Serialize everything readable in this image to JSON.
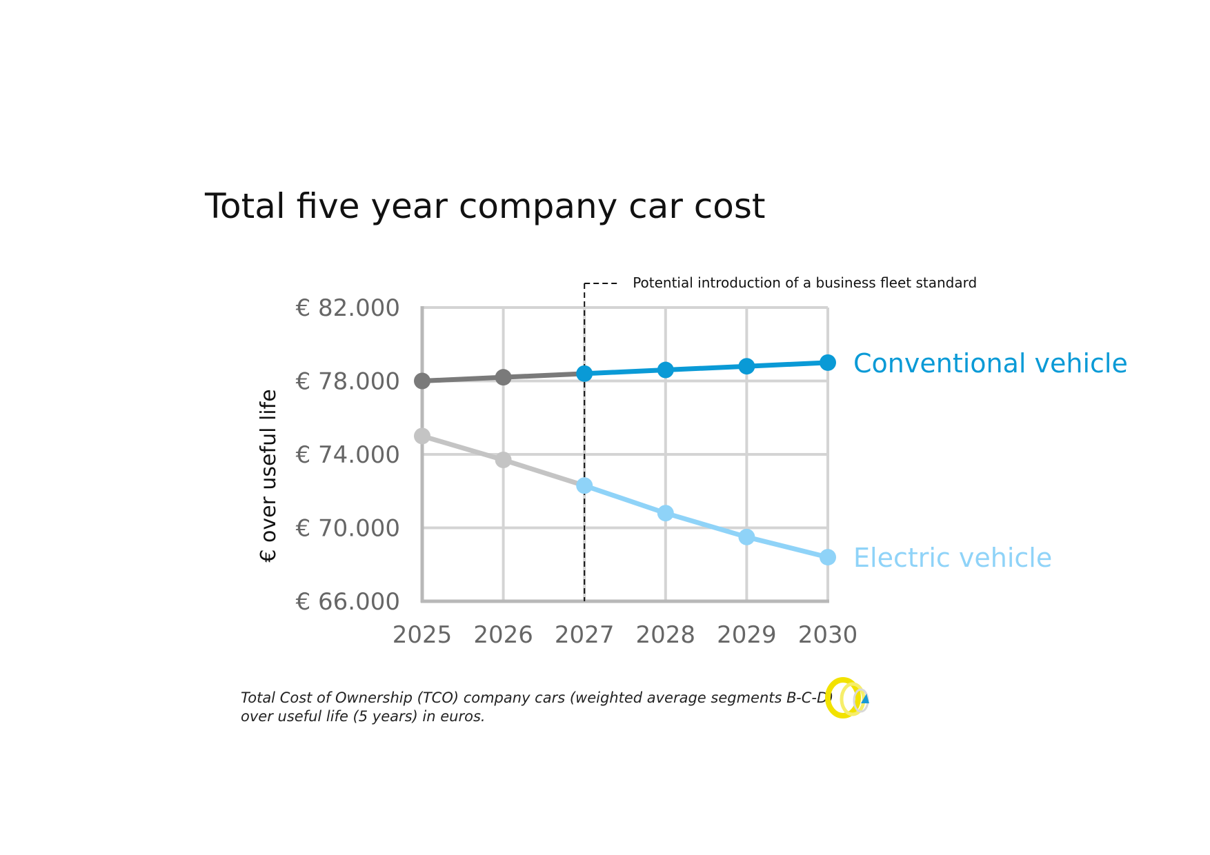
{
  "page": {
    "caption_line1": "Total Cost of Ownership (TCO) company cars (weighted average segments B-C-D)",
    "caption_line2": "over useful life (5 years) in euros.",
    "logo_icon": "yellow-ring-logo-icon"
  },
  "chart_data": {
    "type": "line",
    "title": "Total five year company car cost",
    "xlabel": "",
    "ylabel": "€ over useful life",
    "categories": [
      "2025",
      "2026",
      "2027",
      "2028",
      "2029",
      "2030"
    ],
    "ylim": [
      66000,
      82000
    ],
    "yticks": [
      82000,
      78000,
      74000,
      70000,
      66000
    ],
    "ytick_labels": [
      "€ 82.000",
      "€ 78.000",
      "€ 74.000",
      "€ 70.000",
      "€ 66.000"
    ],
    "grid": true,
    "annotation": {
      "text": "Potential introduction of a business fleet standard",
      "x": "2027",
      "style": "dashed vertical line"
    },
    "series": [
      {
        "name": "Conventional vehicle",
        "values": [
          78000,
          78200,
          78400,
          78600,
          78800,
          79000
        ],
        "color_before": "#7a7a7a",
        "color_after": "#0a9ad6",
        "label_color": "#0a9ad6"
      },
      {
        "name": "Electric vehicle",
        "values": [
          75000,
          73700,
          72300,
          70800,
          69500,
          68400
        ],
        "color_before": "#c4c4c4",
        "color_after": "#8fd3f8",
        "label_color": "#8fd3f8"
      }
    ],
    "split_index": 2,
    "grid_color": "#d4d4d4",
    "axis_color": "#b8b8b8"
  }
}
